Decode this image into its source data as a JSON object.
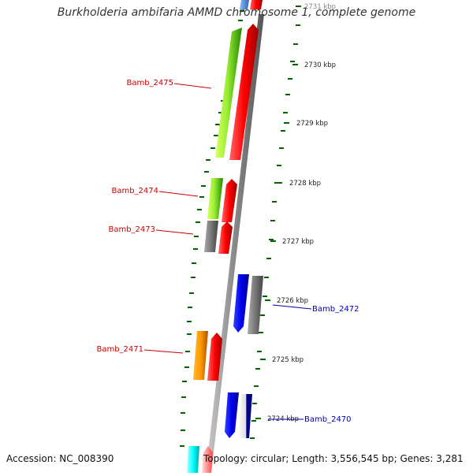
{
  "title": "Burkholderia ambifaria AMMD chromosome 1, complete genome",
  "footer": {
    "accession": "Accession: NC_008390",
    "summary": "Topology: circular; Length: 3,556,545 bp; Genes: 3,281"
  },
  "colors": {
    "forward_label": "#cc0000",
    "reverse_label": "#0000aa",
    "tick": "#006600",
    "backbone": "#888888"
  },
  "scale_labels": [
    {
      "text": "2731 kbp"
    },
    {
      "text": "2730 kbp"
    },
    {
      "text": "2729 kbp"
    },
    {
      "text": "2728 kbp"
    },
    {
      "text": "2727 kbp"
    },
    {
      "text": "2726 kbp"
    },
    {
      "text": "2725 kbp"
    },
    {
      "text": "2724 kbp"
    }
  ],
  "gene_labels": [
    {
      "text": "Bamb_2475",
      "strand": "forward"
    },
    {
      "text": "Bamb_2474",
      "strand": "forward"
    },
    {
      "text": "Bamb_2473",
      "strand": "forward"
    },
    {
      "text": "Bamb_2472",
      "strand": "reverse"
    },
    {
      "text": "Bamb_2471",
      "strand": "forward"
    },
    {
      "text": "Bamb_2470",
      "strand": "reverse"
    }
  ]
}
